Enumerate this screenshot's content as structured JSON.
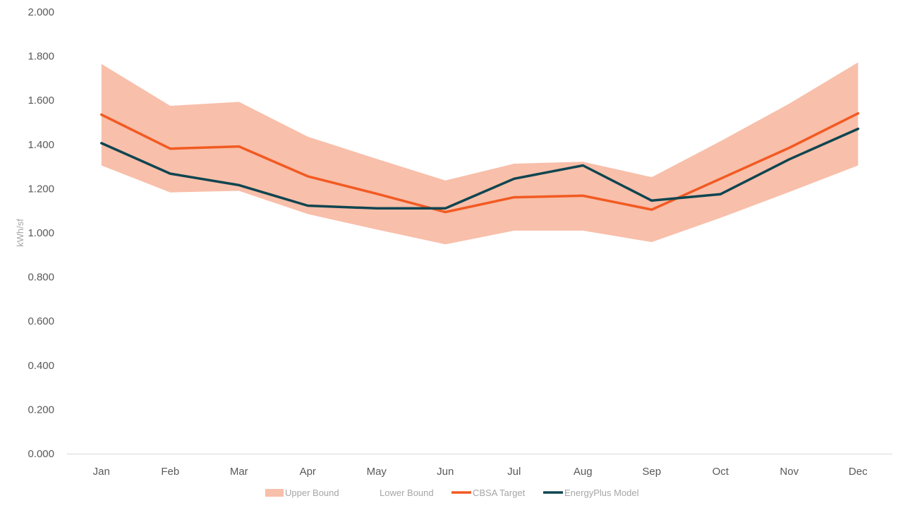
{
  "chart_data": {
    "type": "area",
    "categories": [
      "Jan",
      "Feb",
      "Mar",
      "Apr",
      "May",
      "Jun",
      "Jul",
      "Aug",
      "Sep",
      "Oct",
      "Nov",
      "Dec"
    ],
    "ylabel": "kWh/sf",
    "xlabel": "",
    "title": "",
    "ylim": [
      0,
      2
    ],
    "yticks": [
      "0.000",
      "0.200",
      "0.400",
      "0.600",
      "0.800",
      "1.000",
      "1.200",
      "1.400",
      "1.600",
      "1.800",
      "2.000"
    ],
    "grid": false,
    "legend_position": "bottom",
    "band": {
      "upper_name": "Upper Bound",
      "lower_name": "Lower Bound",
      "color": "#f8bfaa",
      "upper": [
        1.765,
        1.575,
        1.593,
        1.435,
        1.335,
        1.237,
        1.313,
        1.322,
        1.252,
        1.415,
        1.585,
        1.772
      ],
      "lower": [
        1.305,
        1.183,
        1.19,
        1.085,
        1.015,
        0.948,
        1.01,
        1.01,
        0.958,
        1.068,
        1.185,
        1.305
      ]
    },
    "series": [
      {
        "name": "CBSA Target",
        "color": "#f25a22",
        "values": [
          1.535,
          1.381,
          1.391,
          1.256,
          1.177,
          1.094,
          1.161,
          1.168,
          1.105,
          1.245,
          1.385,
          1.541
        ]
      },
      {
        "name": "EnergyPlus Model",
        "color": "#0f4550",
        "values": [
          1.406,
          1.268,
          1.216,
          1.123,
          1.111,
          1.111,
          1.245,
          1.305,
          1.146,
          1.175,
          1.333,
          1.471
        ]
      }
    ]
  }
}
